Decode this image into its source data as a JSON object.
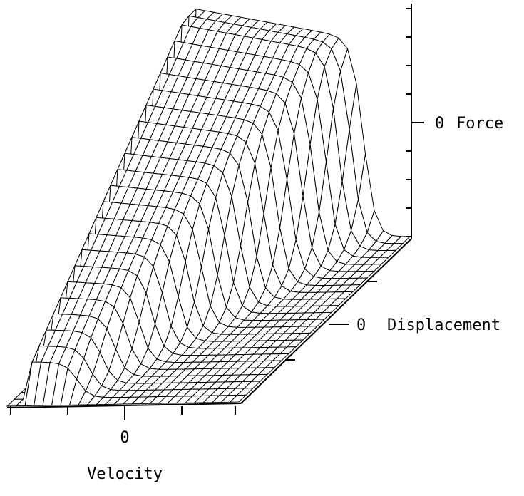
{
  "force_axis": {
    "tick": "0",
    "label": "Force"
  },
  "displacement_axis": {
    "tick": "0",
    "label": "Displacement"
  },
  "velocity_axis": {
    "tick": "0",
    "label": "Velocity"
  }
}
